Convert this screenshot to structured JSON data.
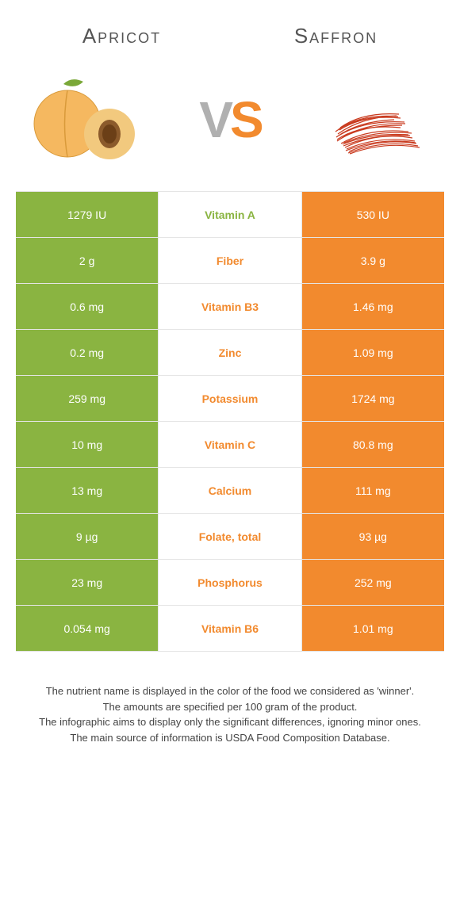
{
  "header": {
    "left_title": "Apricot",
    "right_title": "Saffron",
    "vs_text_v": "V",
    "vs_text_s": "S"
  },
  "colors": {
    "apricot": "#8ab441",
    "saffron": "#f28a2e",
    "winner_text_apricot": "#8ab441",
    "winner_text_saffron": "#f28a2e",
    "row_border": "#e5e5e5",
    "value_text": "#ffffff"
  },
  "rows": [
    {
      "left": "1279 IU",
      "name": "Vitamin A",
      "right": "530 IU",
      "winner": "apricot"
    },
    {
      "left": "2 g",
      "name": "Fiber",
      "right": "3.9 g",
      "winner": "saffron"
    },
    {
      "left": "0.6 mg",
      "name": "Vitamin B3",
      "right": "1.46 mg",
      "winner": "saffron"
    },
    {
      "left": "0.2 mg",
      "name": "Zinc",
      "right": "1.09 mg",
      "winner": "saffron"
    },
    {
      "left": "259 mg",
      "name": "Potassium",
      "right": "1724 mg",
      "winner": "saffron"
    },
    {
      "left": "10 mg",
      "name": "Vitamin C",
      "right": "80.8 mg",
      "winner": "saffron"
    },
    {
      "left": "13 mg",
      "name": "Calcium",
      "right": "111 mg",
      "winner": "saffron"
    },
    {
      "left": "9 µg",
      "name": "Folate, total",
      "right": "93 µg",
      "winner": "saffron"
    },
    {
      "left": "23 mg",
      "name": "Phosphorus",
      "right": "252 mg",
      "winner": "saffron"
    },
    {
      "left": "0.054 mg",
      "name": "Vitamin B6",
      "right": "1.01 mg",
      "winner": "saffron"
    }
  ],
  "footnotes": [
    "The nutrient name is displayed in the color of the food we considered as 'winner'.",
    "The amounts are specified per 100 gram of the product.",
    "The infographic aims to display only the significant differences, ignoring minor ones.",
    "The main source of information is USDA Food Composition Database."
  ]
}
